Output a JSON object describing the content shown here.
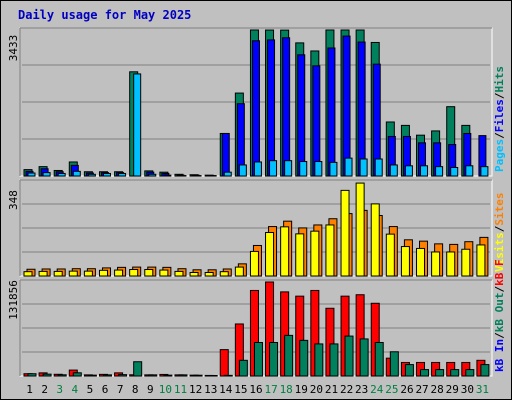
{
  "chart_data": {
    "type": "bar",
    "title": "Daily usage for May 2025",
    "days": [
      "1",
      "2",
      "3",
      "4",
      "5",
      "6",
      "7",
      "8",
      "9",
      "10",
      "11",
      "12",
      "13",
      "14",
      "15",
      "16",
      "17",
      "18",
      "19",
      "20",
      "21",
      "22",
      "23",
      "24",
      "25",
      "26",
      "27",
      "28",
      "29",
      "30",
      "31"
    ],
    "weekend_days": [
      "3",
      "4",
      "10",
      "11",
      "17",
      "18",
      "24",
      "25",
      "31"
    ],
    "colors": {
      "hits": "#00805c",
      "files": "#0000ff",
      "pages": "#00c0ff",
      "visits": "#ffff00",
      "sites": "#ff8000",
      "kb_in": "#ff0000",
      "kb_out": "#00805c",
      "weekend_label": "#008040",
      "weekday_label": "#000000"
    },
    "panels": [
      {
        "max_label": "348",
        "ymax": 348,
        "series": [
          {
            "key": "sites",
            "label": "Sites",
            "color": "#ff8000",
            "values": [
              25,
              26,
              26,
              27,
              27,
              30,
              32,
              33,
              33,
              32,
              27,
              23,
              23,
              26,
              45,
              113,
              183,
              203,
              178,
              189,
              212,
              231,
              243,
              224,
              183,
              134,
              129,
              119,
              117,
              127,
              143
            ]
          },
          {
            "key": "visits",
            "label": "Visits",
            "color": "#ffff00",
            "values": [
              16,
              17,
              17,
              18,
              18,
              21,
              22,
              24,
              24,
              22,
              17,
              13,
              13,
              16,
              33,
              91,
              161,
              182,
              156,
              166,
              189,
              317,
              344,
              267,
              155,
              109,
              102,
              89,
              89,
              99,
              115
            ]
          }
        ],
        "legend": [
          {
            "text": "Visits",
            "color": "#ffff00"
          },
          {
            "text": "/",
            "color": "#000000"
          },
          {
            "text": "Sites",
            "color": "#ff8000"
          }
        ]
      },
      {
        "max_label": "131856",
        "ymax": 131856,
        "series": [
          {
            "key": "kb_in",
            "label": "kB In",
            "color": "#ff0000",
            "values": [
              3200,
              4400,
              2400,
              8300,
              1600,
              2300,
              4400,
              1700,
              1600,
              2200,
              1600,
              1200,
              800,
              37000,
              73000,
              120000,
              131856,
              118000,
              112000,
              120000,
              95000,
              112000,
              114000,
              102000,
              25000,
              19000,
              19000,
              19000,
              19000,
              19000,
              22000
            ]
          },
          {
            "key": "kb_out",
            "label": "kB Out",
            "color": "#00805c",
            "values": [
              3200,
              2600,
              1700,
              4500,
              1200,
              1600,
              1900,
              20000,
              1600,
              1200,
              1600,
              1100,
              700,
              900,
              22000,
              47000,
              47000,
              57000,
              50000,
              45000,
              45000,
              56000,
              52000,
              47000,
              34000,
              16000,
              9000,
              9000,
              9000,
              9000,
              16000
            ]
          }
        ],
        "legend": [
          {
            "text": "kB In",
            "color": "#0000ff"
          },
          {
            "text": "/",
            "color": "#000000"
          },
          {
            "text": "kB Out",
            "color": "#00805c"
          },
          {
            "text": "/",
            "color": "#000000"
          },
          {
            "text": "kB F",
            "color": "#ff0000"
          }
        ]
      },
      {
        "max_label": "3433",
        "ymax": 3433,
        "series": [
          {
            "key": "hits",
            "label": "Hits",
            "color": "#00805c",
            "values": [
              150,
              220,
              130,
              330,
              100,
              100,
              100,
              2450,
              120,
              90,
              40,
              30,
              20,
              1000,
              1950,
              3433,
              3432,
              3430,
              3130,
              2940,
              3433,
              3433,
              3433,
              3140,
              1270,
              1190,
              960,
              1060,
              1630,
              1190,
              0
            ]
          },
          {
            "key": "files",
            "label": "Files",
            "color": "#0000ff",
            "values": [
              110,
              170,
              100,
              250,
              70,
              80,
              80,
              0,
              90,
              60,
              20,
              20,
              10,
              1000,
              1700,
              3180,
              3200,
              3250,
              2850,
              2590,
              3010,
              3290,
              3150,
              2630,
              930,
              930,
              780,
              780,
              740,
              1000,
              950
            ]
          },
          {
            "key": "pages",
            "label": "Pages",
            "color": "#00c0ff",
            "values": [
              70,
              80,
              60,
              110,
              40,
              60,
              60,
              2400,
              40,
              20,
              10,
              10,
              10,
              90,
              260,
              330,
              360,
              360,
              340,
              340,
              320,
              420,
              400,
              400,
              260,
              240,
              240,
              220,
              200,
              240,
              220
            ]
          }
        ],
        "legend": [
          {
            "text": "Pages",
            "color": "#00c0ff"
          },
          {
            "text": "/",
            "color": "#000000"
          },
          {
            "text": "Files",
            "color": "#0000ff"
          },
          {
            "text": "/",
            "color": "#000000"
          },
          {
            "text": "Hits",
            "color": "#00805c"
          }
        ]
      }
    ]
  }
}
